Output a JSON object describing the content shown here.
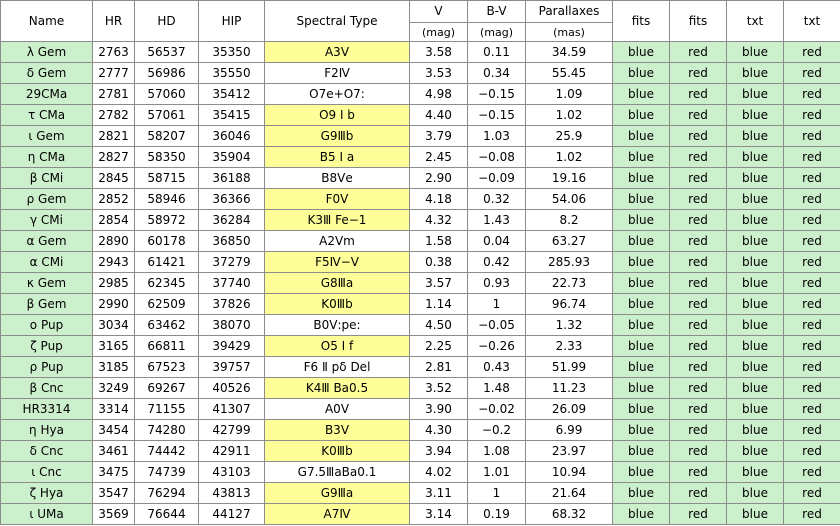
{
  "headers": {
    "name": "Name",
    "hr": "HR",
    "hd": "HD",
    "hip": "HIP",
    "spectral": "Spectral Type",
    "v": "V",
    "bv": "B-V",
    "plx": "Parallaxes",
    "fits1": "fits",
    "fits2": "fits",
    "txt1": "txt",
    "txt2": "txt",
    "v_unit": "(mag)",
    "bv_unit": "(mag)",
    "plx_unit": "(mas)"
  },
  "colors": {
    "name_bg": "#ccf0cc",
    "link_bg": "#ccf0cc",
    "spectral_highlight": "#ffff99",
    "grid": "#8c8c8c"
  },
  "rows": [
    {
      "name": "λ Gem",
      "hr": "2763",
      "hd": "56537",
      "hip": "35350",
      "sp": "A3Ⅴ",
      "sp_hl": true,
      "v": "3.58",
      "bv": "0.11",
      "plx": "34.59",
      "fits_blue": "blue",
      "fits_red": "red",
      "txt_blue": "blue",
      "txt_red": "red"
    },
    {
      "name": "δ Gem",
      "hr": "2777",
      "hd": "56986",
      "hip": "35550",
      "sp": "F2Ⅳ",
      "sp_hl": false,
      "v": "3.53",
      "bv": "0.34",
      "plx": "55.45",
      "fits_blue": "blue",
      "fits_red": "red",
      "txt_blue": "blue",
      "txt_red": "red"
    },
    {
      "name": "29CMa",
      "hr": "2781",
      "hd": "57060",
      "hip": "35412",
      "sp": "O7e+O7:",
      "sp_hl": false,
      "v": "4.98",
      "bv": "−0.15",
      "plx": "1.09",
      "fits_blue": "blue",
      "fits_red": "red",
      "txt_blue": "blue",
      "txt_red": "red"
    },
    {
      "name": "τ CMa",
      "hr": "2782",
      "hd": "57061",
      "hip": "35415",
      "sp": "O9 Ⅰ b",
      "sp_hl": true,
      "v": "4.40",
      "bv": "−0.15",
      "plx": "1.02",
      "fits_blue": "blue",
      "fits_red": "red",
      "txt_blue": "blue",
      "txt_red": "red"
    },
    {
      "name": "ι Gem",
      "hr": "2821",
      "hd": "58207",
      "hip": "36046",
      "sp": "G9Ⅲb",
      "sp_hl": true,
      "v": "3.79",
      "bv": "1.03",
      "plx": "25.9",
      "fits_blue": "blue",
      "fits_red": "red",
      "txt_blue": "blue",
      "txt_red": "red"
    },
    {
      "name": "η CMa",
      "hr": "2827",
      "hd": "58350",
      "hip": "35904",
      "sp": "B5 Ⅰ a",
      "sp_hl": true,
      "v": "2.45",
      "bv": "−0.08",
      "plx": "1.02",
      "fits_blue": "blue",
      "fits_red": "red",
      "txt_blue": "blue",
      "txt_red": "red"
    },
    {
      "name": "β CMi",
      "hr": "2845",
      "hd": "58715",
      "hip": "36188",
      "sp": "B8Ⅴe",
      "sp_hl": false,
      "v": "2.90",
      "bv": "−0.09",
      "plx": "19.16",
      "fits_blue": "blue",
      "fits_red": "red",
      "txt_blue": "blue",
      "txt_red": "red"
    },
    {
      "name": "ρ Gem",
      "hr": "2852",
      "hd": "58946",
      "hip": "36366",
      "sp": "F0Ⅴ",
      "sp_hl": true,
      "v": "4.18",
      "bv": "0.32",
      "plx": "54.06",
      "fits_blue": "blue",
      "fits_red": "red",
      "txt_blue": "blue",
      "txt_red": "red"
    },
    {
      "name": "γ CMi",
      "hr": "2854",
      "hd": "58972",
      "hip": "36284",
      "sp": "K3Ⅲ Fe−1",
      "sp_hl": true,
      "v": "4.32",
      "bv": "1.43",
      "plx": "8.2",
      "fits_blue": "blue",
      "fits_red": "red",
      "txt_blue": "blue",
      "txt_red": "red"
    },
    {
      "name": "α Gem",
      "hr": "2890",
      "hd": "60178",
      "hip": "36850",
      "sp": "A2Ⅴm",
      "sp_hl": false,
      "v": "1.58",
      "bv": "0.04",
      "plx": "63.27",
      "fits_blue": "blue",
      "fits_red": "red",
      "txt_blue": "blue",
      "txt_red": "red"
    },
    {
      "name": "α CMi",
      "hr": "2943",
      "hd": "61421",
      "hip": "37279",
      "sp": "F5Ⅳ−Ⅴ",
      "sp_hl": true,
      "v": "0.38",
      "bv": "0.42",
      "plx": "285.93",
      "fits_blue": "blue",
      "fits_red": "red",
      "txt_blue": "blue",
      "txt_red": "red"
    },
    {
      "name": "κ Gem",
      "hr": "2985",
      "hd": "62345",
      "hip": "37740",
      "sp": "G8Ⅲa",
      "sp_hl": true,
      "v": "3.57",
      "bv": "0.93",
      "plx": "22.73",
      "fits_blue": "blue",
      "fits_red": "red",
      "txt_blue": "blue",
      "txt_red": "red"
    },
    {
      "name": "β Gem",
      "hr": "2990",
      "hd": "62509",
      "hip": "37826",
      "sp": "K0Ⅲb",
      "sp_hl": true,
      "v": "1.14",
      "bv": "1",
      "plx": "96.74",
      "fits_blue": "blue",
      "fits_red": "red",
      "txt_blue": "blue",
      "txt_red": "red"
    },
    {
      "name": "ο Pup",
      "hr": "3034",
      "hd": "63462",
      "hip": "38070",
      "sp": "B0Ⅴ:pe:",
      "sp_hl": false,
      "v": "4.50",
      "bv": "−0.05",
      "plx": "1.32",
      "fits_blue": "blue",
      "fits_red": "red",
      "txt_blue": "blue",
      "txt_red": "red"
    },
    {
      "name": "ζ Pup",
      "hr": "3165",
      "hd": "66811",
      "hip": "39429",
      "sp": "O5 Ⅰ f",
      "sp_hl": true,
      "v": "2.25",
      "bv": "−0.26",
      "plx": "2.33",
      "fits_blue": "blue",
      "fits_red": "red",
      "txt_blue": "blue",
      "txt_red": "red"
    },
    {
      "name": "ρ Pup",
      "hr": "3185",
      "hd": "67523",
      "hip": "39757",
      "sp": "F6 Ⅱ pδ Del",
      "sp_hl": false,
      "v": "2.81",
      "bv": "0.43",
      "plx": "51.99",
      "fits_blue": "blue",
      "fits_red": "red",
      "txt_blue": "blue",
      "txt_red": "red"
    },
    {
      "name": "β Cnc",
      "hr": "3249",
      "hd": "69267",
      "hip": "40526",
      "sp": "K4Ⅲ Ba0.5",
      "sp_hl": true,
      "v": "3.52",
      "bv": "1.48",
      "plx": "11.23",
      "fits_blue": "blue",
      "fits_red": "red",
      "txt_blue": "blue",
      "txt_red": "red"
    },
    {
      "name": "HR3314",
      "hr": "3314",
      "hd": "71155",
      "hip": "41307",
      "sp": "A0Ⅴ",
      "sp_hl": false,
      "v": "3.90",
      "bv": "−0.02",
      "plx": "26.09",
      "fits_blue": "blue",
      "fits_red": "red",
      "txt_blue": "blue",
      "txt_red": "red"
    },
    {
      "name": "η Hya",
      "hr": "3454",
      "hd": "74280",
      "hip": "42799",
      "sp": "B3Ⅴ",
      "sp_hl": true,
      "v": "4.30",
      "bv": "−0.2",
      "plx": "6.99",
      "fits_blue": "blue",
      "fits_red": "red",
      "txt_blue": "blue",
      "txt_red": "red"
    },
    {
      "name": "δ Cnc",
      "hr": "3461",
      "hd": "74442",
      "hip": "42911",
      "sp": "K0Ⅲb",
      "sp_hl": true,
      "v": "3.94",
      "bv": "1.08",
      "plx": "23.97",
      "fits_blue": "blue",
      "fits_red": "red",
      "txt_blue": "blue",
      "txt_red": "red"
    },
    {
      "name": "ι Cnc",
      "hr": "3475",
      "hd": "74739",
      "hip": "43103",
      "sp": "G7.5ⅢaBa0.1",
      "sp_hl": false,
      "v": "4.02",
      "bv": "1.01",
      "plx": "10.94",
      "fits_blue": "blue",
      "fits_red": "red",
      "txt_blue": "blue",
      "txt_red": "red"
    },
    {
      "name": "ζ Hya",
      "hr": "3547",
      "hd": "76294",
      "hip": "43813",
      "sp": "G9Ⅲa",
      "sp_hl": true,
      "v": "3.11",
      "bv": "1",
      "plx": "21.64",
      "fits_blue": "blue",
      "fits_red": "red",
      "txt_blue": "blue",
      "txt_red": "red"
    },
    {
      "name": "ι UMa",
      "hr": "3569",
      "hd": "76644",
      "hip": "44127",
      "sp": "A7Ⅳ",
      "sp_hl": true,
      "v": "3.14",
      "bv": "0.19",
      "plx": "68.32",
      "fits_blue": "blue",
      "fits_red": "red",
      "txt_blue": "blue",
      "txt_red": "red"
    }
  ]
}
